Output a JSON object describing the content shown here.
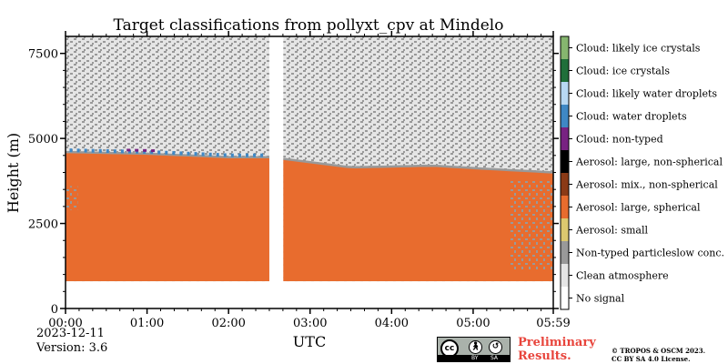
{
  "chart_data": {
    "type": "heatmap",
    "title": "Target classifications from pollyxt_cpv at Mindelo",
    "xlabel": "UTC",
    "ylabel": "Height (m)",
    "xlim_hours": [
      0,
      5.983
    ],
    "ylim": [
      0,
      8000
    ],
    "x_ticks": [
      {
        "value": 0,
        "label": "00:00"
      },
      {
        "value": 1,
        "label": "01:00"
      },
      {
        "value": 2,
        "label": "02:00"
      },
      {
        "value": 3,
        "label": "03:00"
      },
      {
        "value": 4,
        "label": "04:00"
      },
      {
        "value": 5,
        "label": "05:00"
      },
      {
        "value": 5.983,
        "label": "05:59"
      }
    ],
    "y_ticks": [
      {
        "value": 0,
        "label": "0"
      },
      {
        "value": 2500,
        "label": "2500"
      },
      {
        "value": 5000,
        "label": "5000"
      },
      {
        "value": 7500,
        "label": "7500"
      }
    ],
    "data_gaps_hours": [
      [
        2.5,
        2.67
      ]
    ],
    "lowest_valid_height_m": 800,
    "aerosol_layer_top_m": [
      {
        "x": 0,
        "y": 4600
      },
      {
        "x": 1,
        "y": 4550
      },
      {
        "x": 2,
        "y": 4450
      },
      {
        "x": 2.5,
        "y": 4450
      },
      {
        "x": 2.67,
        "y": 4400
      },
      {
        "x": 3.5,
        "y": 4150
      },
      {
        "x": 4.5,
        "y": 4200
      },
      {
        "x": 5.2,
        "y": 4100
      },
      {
        "x": 5.983,
        "y": 4000
      }
    ],
    "legend": [
      {
        "label": "Cloud: likely ice crystals",
        "color": "#86b66f"
      },
      {
        "label": "Cloud: ice crystals",
        "color": "#206f3a"
      },
      {
        "label": "Cloud: likely water droplets",
        "color": "#b8d8f3"
      },
      {
        "label": "Cloud: water droplets",
        "color": "#3f88c5"
      },
      {
        "label": "Cloud: non-typed",
        "color": "#782282"
      },
      {
        "label": "Aerosol: large, non-spherical",
        "color": "#000000"
      },
      {
        "label": "Aerosol: mix., non-spherical",
        "color": "#8b3a16"
      },
      {
        "label": "Aerosol: large, spherical",
        "color": "#e86c2e"
      },
      {
        "label": "Aerosol: small",
        "color": "#dcc86f"
      },
      {
        "label": "Non-typed particleslow conc.",
        "color": "#999999"
      },
      {
        "label": "Clean atmosphere",
        "color": "#e5e5e5"
      },
      {
        "label": "No signal",
        "color": "#ffffff"
      }
    ]
  },
  "footer": {
    "date": "2023-12-11",
    "version": "Version: 3.6",
    "preliminary_line1": "Preliminary",
    "preliminary_line2": "Results.",
    "copyright_line1": "© TROPOS & OSCM 2023.",
    "copyright_line2": "CC BY SA 4.0 License.",
    "license_badge": {
      "cc": "cc",
      "by": "BY",
      "sa": "SA"
    }
  }
}
